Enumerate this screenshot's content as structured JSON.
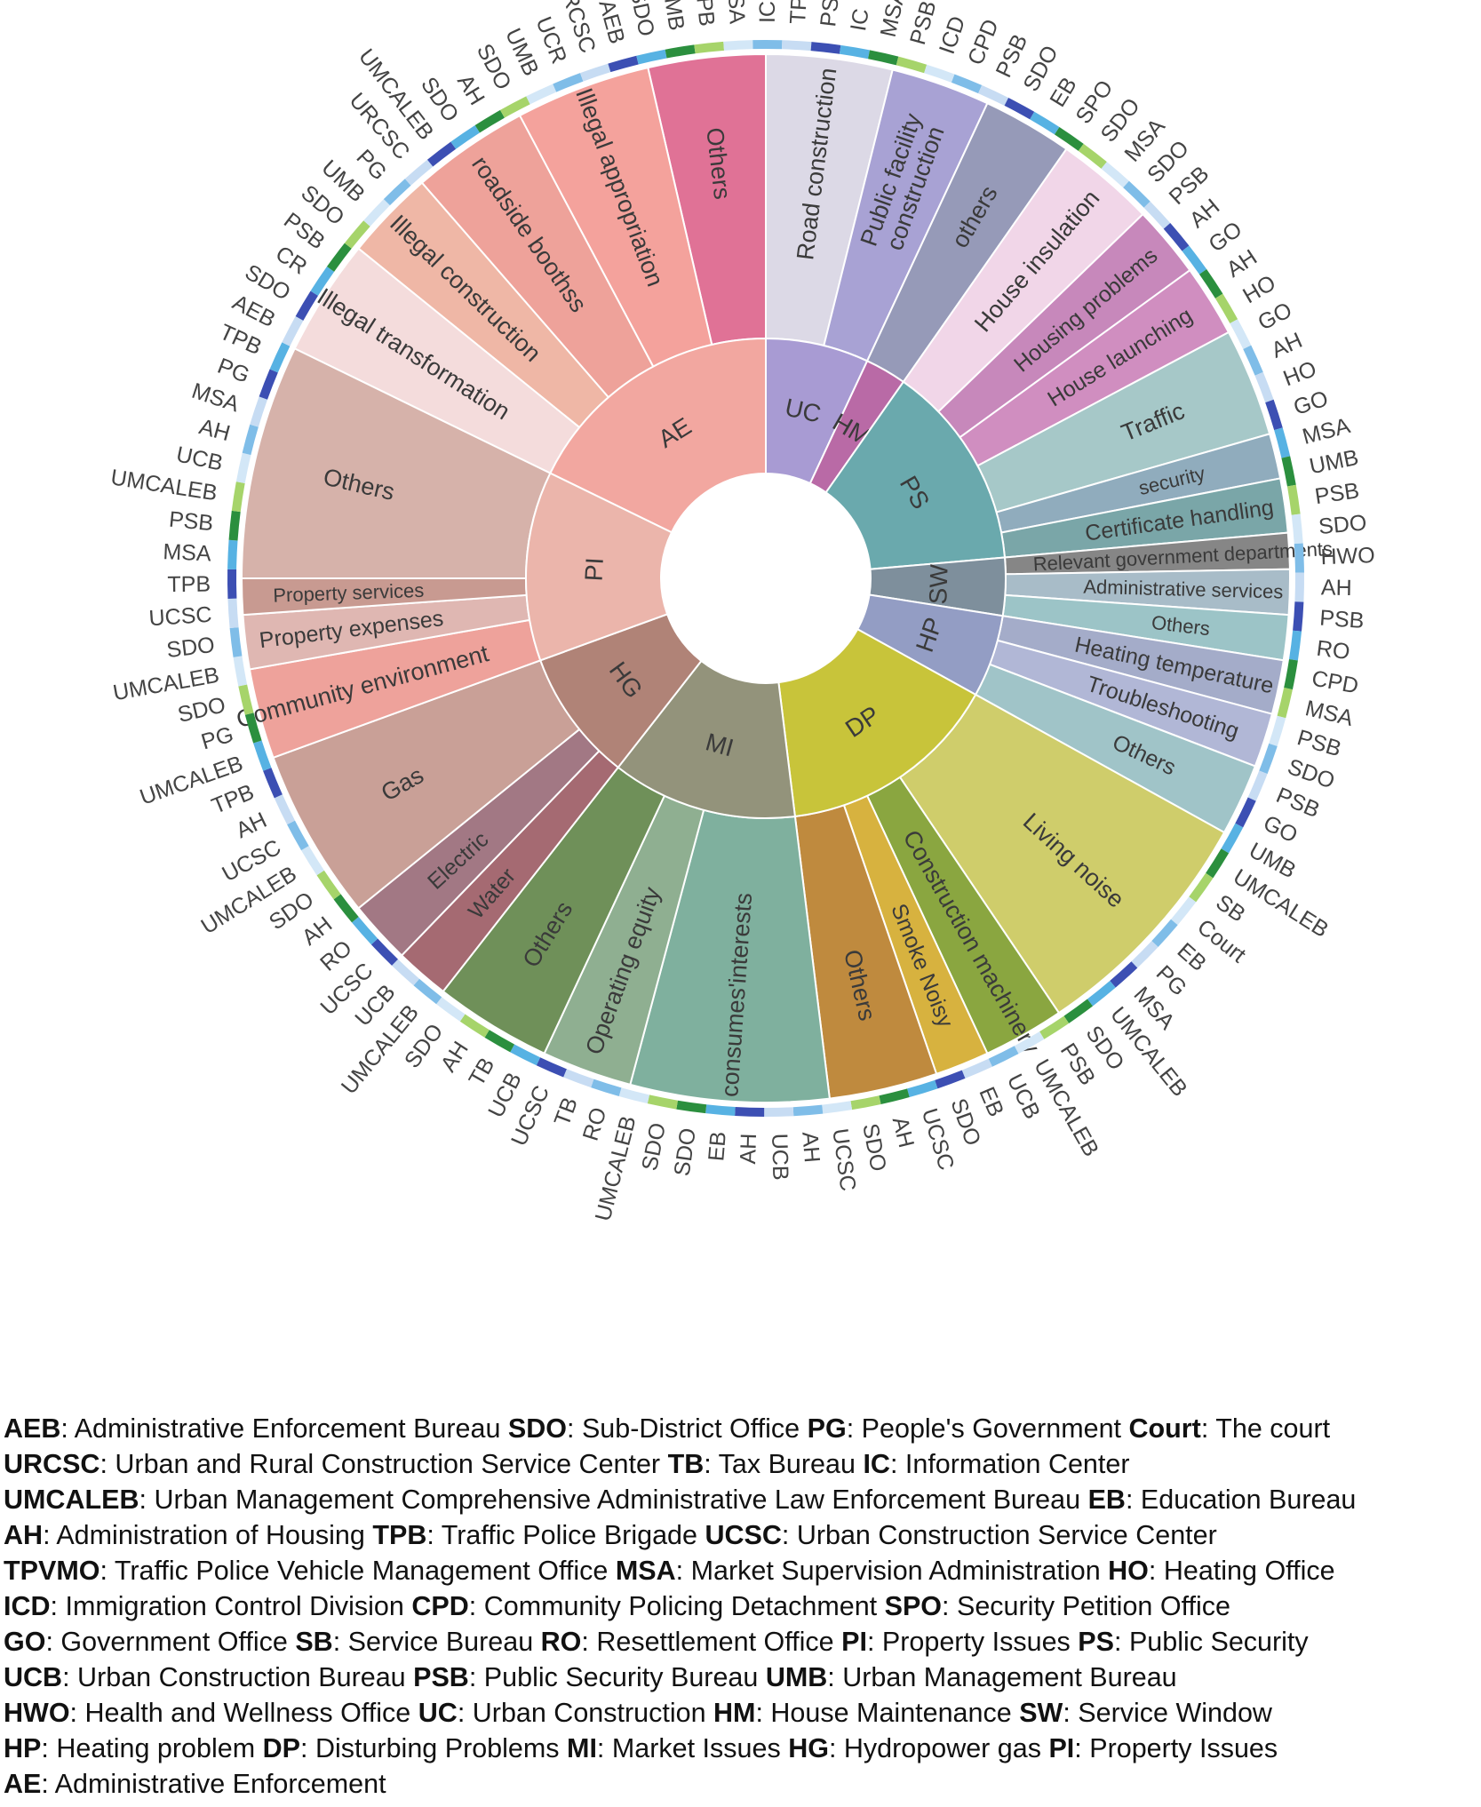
{
  "chart_data": {
    "type": "sunburst",
    "title": "",
    "inner_ring": [
      {
        "label": "AE",
        "color": "#f2a7a0"
      },
      {
        "label": "UC",
        "color": "#a89bd3"
      },
      {
        "label": "HM",
        "color": "#b96aa6"
      },
      {
        "label": "PS",
        "color": "#6aa9ad"
      },
      {
        "label": "SW",
        "color": "#7e8f9c"
      },
      {
        "label": "HP",
        "color": "#939dc4"
      },
      {
        "label": "DP",
        "color": "#c8c43a"
      },
      {
        "label": "MI",
        "color": "#93937b"
      },
      {
        "label": "HG",
        "color": "#b08377"
      },
      {
        "label": "PI",
        "color": "#ebb5ab"
      }
    ],
    "middle_ring": [
      {
        "parent": "AE",
        "label": "Others",
        "color": "#e07296"
      },
      {
        "parent": "AE",
        "label": "Illegal appropriation",
        "color": "#f4a29c"
      },
      {
        "parent": "AE",
        "label": "roadside boothss",
        "color": "#eea29a"
      },
      {
        "parent": "AE",
        "label": "Illegal construction",
        "color": "#efb7a6"
      },
      {
        "parent": "AE",
        "label": "Illegal transformation",
        "color": "#f4dcdc"
      },
      {
        "parent": "UC",
        "label": "Road construction",
        "color": "#dcd9e6"
      },
      {
        "parent": "UC",
        "label": "Public facility construction",
        "color": "#a8a2d4"
      },
      {
        "parent": "UC",
        "label": "others",
        "color": "#969ab8"
      },
      {
        "parent": "HM",
        "label": "House insulation",
        "color": "#f1d6e8"
      },
      {
        "parent": "HM",
        "label": "Housing problems",
        "color": "#c788bb"
      },
      {
        "parent": "HM",
        "label": "House launching",
        "color": "#d08ec0"
      },
      {
        "parent": "PS",
        "label": "Traffic",
        "color": "#a6c8c8"
      },
      {
        "parent": "PS",
        "label": "security",
        "color": "#90acbd"
      },
      {
        "parent": "PS",
        "label": "Certificate handling",
        "color": "#7aa6a8"
      },
      {
        "parent": "SW",
        "label": "Relevant government departments",
        "color": "#868686"
      },
      {
        "parent": "SW",
        "label": "Administrative services",
        "color": "#a8bcc8"
      },
      {
        "parent": "SW",
        "label": "Others",
        "color": "#9cc4c7"
      },
      {
        "parent": "HP",
        "label": "Heating temperature",
        "color": "#a4acc9"
      },
      {
        "parent": "HP",
        "label": "Troubleshooting",
        "color": "#b1b7d6"
      },
      {
        "parent": "HP",
        "label": "Others",
        "color": "#a0c4c8"
      },
      {
        "parent": "DP",
        "label": "Living noise",
        "color": "#cfcd6b"
      },
      {
        "parent": "DP",
        "label": "Construction machinery",
        "color": "#8aa640"
      },
      {
        "parent": "DP",
        "label": "Smoke Noisy",
        "color": "#d7b23f"
      },
      {
        "parent": "DP",
        "label": "Others",
        "color": "#bf8a3e"
      },
      {
        "parent": "MI",
        "label": "consumes'interests",
        "color": "#7fb09e"
      },
      {
        "parent": "MI",
        "label": "Operating equity",
        "color": "#8faf91"
      },
      {
        "parent": "MI",
        "label": "Others",
        "color": "#6f9059"
      },
      {
        "parent": "HG",
        "label": "Water",
        "color": "#a56a72"
      },
      {
        "parent": "HG",
        "label": "Electric",
        "color": "#a27884"
      },
      {
        "parent": "HG",
        "label": "Gas",
        "color": "#c9a097"
      },
      {
        "parent": "PI",
        "label": "Community environment",
        "color": "#eea29b"
      },
      {
        "parent": "PI",
        "label": "Property expenses",
        "color": "#dfb7b2"
      },
      {
        "parent": "PI",
        "label": "Property services",
        "color": "#c89a91"
      },
      {
        "parent": "PI",
        "label": "Others",
        "color": "#d6b2aa"
      }
    ],
    "outer_labels": [
      "AEB",
      "SDO",
      "CR",
      "PSB",
      "SDO",
      "UMB",
      "PG",
      "URCSC",
      "UMCALEB",
      "SDO",
      "AH",
      "SDO",
      "UMB",
      "UCR",
      "URCSC",
      "AEB",
      "SDO",
      "UMB",
      "TPB",
      "MSA",
      "IC",
      "TPVMO",
      "PSB",
      "IC",
      "MSA",
      "PSB",
      "ICD",
      "CPD",
      "PSB",
      "SDO",
      "EB",
      "SPO",
      "SDO",
      "MSA",
      "SDO",
      "PSB",
      "AH",
      "GO",
      "AH",
      "HO",
      "GO",
      "AH",
      "HO",
      "GO",
      "MSA",
      "UMB",
      "PSB",
      "SDO",
      "HWO",
      "AH",
      "PSB",
      "RO",
      "CPD",
      "MSA",
      "PSB",
      "SDO",
      "PSB",
      "GO",
      "UMB",
      "UMCALEB",
      "SB",
      "Court",
      "EB",
      "PG",
      "MSA",
      "UMCALEB",
      "SDO",
      "PSB",
      "UMCALEB",
      "UCB",
      "EB",
      "SDO",
      "UCSC",
      "AH",
      "SDO",
      "UCSC",
      "AH",
      "UCB",
      "AH",
      "EB",
      "SDO",
      "SDO",
      "UMCALEB",
      "RO",
      "TB",
      "UCSC",
      "UCB",
      "TB",
      "AH",
      "SDO",
      "UMCALEB",
      "UCB",
      "UCSC",
      "RO",
      "AH",
      "SDO",
      "UMCALEB",
      "UCSC",
      "AH",
      "TPB",
      "UMCALEB",
      "PG",
      "SDO",
      "UMCALEB",
      "SDO",
      "UCSC",
      "TPB",
      "MSA",
      "PSB",
      "UMCALEB",
      "UCB",
      "AH",
      "MSA",
      "PG",
      "TPB"
    ]
  },
  "legend": {
    "lines": [
      [
        [
          "AEB",
          "Administrative Enforcement Bureau"
        ],
        [
          "SDO",
          "Sub-District Office"
        ],
        [
          "PG",
          "People's Government"
        ],
        [
          "Court",
          "The court"
        ]
      ],
      [
        [
          "URCSC",
          "Urban and Rural Construction Service Center"
        ],
        [
          "TB",
          "Tax Bureau"
        ],
        [
          "IC",
          "Information Center"
        ]
      ],
      [
        [
          "UMCALEB",
          "Urban Management Comprehensive Administrative Law Enforcement Bureau"
        ],
        [
          "EB",
          "Education Bureau"
        ]
      ],
      [
        [
          "AH",
          "Administration of Housing"
        ],
        [
          "TPB",
          "Traffic Police Brigade"
        ],
        [
          "UCSC",
          "Urban Construction Service Center"
        ]
      ],
      [
        [
          "TPVMO",
          "Traffic Police Vehicle Management Office"
        ],
        [
          "MSA",
          "Market Supervision Administration"
        ],
        [
          "HO",
          "Heating Office"
        ]
      ],
      [
        [
          "ICD",
          "Immigration Control Division"
        ],
        [
          "CPD",
          "Community Policing Detachment"
        ],
        [
          "SPO",
          "Security Petition Office"
        ]
      ],
      [
        [
          "GO",
          "Government Office"
        ],
        [
          "SB",
          "Service Bureau"
        ],
        [
          "RO",
          "Resettlement Office"
        ],
        [
          "PI",
          "Property Issues"
        ],
        [
          "PS",
          "Public Security"
        ]
      ],
      [
        [
          "UCB",
          "Urban Construction Bureau"
        ],
        [
          "PSB",
          "Public Security Bureau"
        ],
        [
          "UMB",
          "Urban Management Bureau"
        ]
      ],
      [
        [
          "HWO",
          "Health and Wellness Office"
        ],
        [
          "UC",
          "Urban Construction"
        ],
        [
          "HM",
          "House Maintenance"
        ],
        [
          "SW",
          "Service Window"
        ]
      ],
      [
        [
          "HP",
          "Heating problem"
        ],
        [
          "DP",
          "Disturbing Problems"
        ],
        [
          "MI",
          "Market Issues"
        ],
        [
          "HG",
          "Hydropower gas"
        ],
        [
          "PI",
          "Property Issues"
        ]
      ],
      [
        [
          "AE",
          "Administrative Enforcement"
        ]
      ]
    ]
  }
}
